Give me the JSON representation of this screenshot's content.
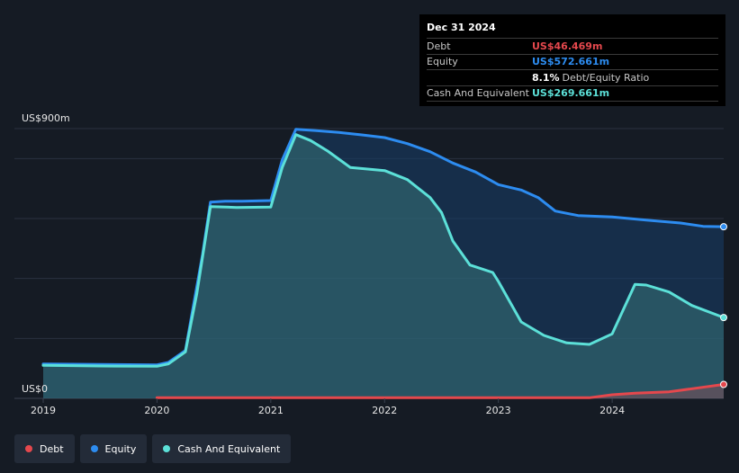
{
  "tooltip": {
    "date": "Dec 31 2024",
    "rows": [
      {
        "label": "Debt",
        "value": "US$46.469m",
        "color": "#e5484d"
      },
      {
        "label": "Equity",
        "value": "US$572.661m",
        "color": "#2d8cf0"
      },
      {
        "label": "",
        "value": "8.1%",
        "extra": "Debt/Equity Ratio",
        "color": "#ffffff"
      },
      {
        "label": "Cash And Equivalent",
        "value": "US$269.661m",
        "color": "#5ce0d8"
      }
    ]
  },
  "legend": [
    {
      "label": "Debt",
      "color": "#e5484d"
    },
    {
      "label": "Equity",
      "color": "#2d8cf0"
    },
    {
      "label": "Cash And Equivalent",
      "color": "#5ce0d8"
    }
  ],
  "chart_data": {
    "type": "area",
    "y_top_label": "US$900m",
    "y_bottom_label": "US$0",
    "ylim": [
      0,
      900
    ],
    "xlim": [
      2019.0,
      2024.98
    ],
    "x_ticks": [
      "2019",
      "2020",
      "2021",
      "2022",
      "2023",
      "2024"
    ],
    "grid": true,
    "series": [
      {
        "name": "Equity",
        "color": "#2d8cf0",
        "points": [
          [
            2019.0,
            115
          ],
          [
            2019.5,
            113
          ],
          [
            2020.0,
            112
          ],
          [
            2020.1,
            120
          ],
          [
            2020.25,
            160
          ],
          [
            2020.4,
            480
          ],
          [
            2020.47,
            655
          ],
          [
            2020.6,
            658
          ],
          [
            2020.75,
            658
          ],
          [
            2021.0,
            660
          ],
          [
            2021.1,
            795
          ],
          [
            2021.22,
            898
          ],
          [
            2021.4,
            893
          ],
          [
            2021.6,
            887
          ],
          [
            2021.8,
            879
          ],
          [
            2022.0,
            870
          ],
          [
            2022.2,
            850
          ],
          [
            2022.4,
            823
          ],
          [
            2022.6,
            785
          ],
          [
            2022.8,
            755
          ],
          [
            2023.0,
            713
          ],
          [
            2023.2,
            695
          ],
          [
            2023.35,
            670
          ],
          [
            2023.5,
            625
          ],
          [
            2023.7,
            610
          ],
          [
            2024.0,
            605
          ],
          [
            2024.3,
            595
          ],
          [
            2024.6,
            585
          ],
          [
            2024.8,
            574
          ],
          [
            2024.98,
            572.661
          ]
        ]
      },
      {
        "name": "Cash And Equivalent",
        "color": "#5ce0d8",
        "points": [
          [
            2019.0,
            110
          ],
          [
            2019.5,
            108
          ],
          [
            2020.0,
            107
          ],
          [
            2020.1,
            115
          ],
          [
            2020.25,
            155
          ],
          [
            2020.35,
            350
          ],
          [
            2020.47,
            640
          ],
          [
            2020.7,
            637
          ],
          [
            2021.0,
            638
          ],
          [
            2021.1,
            770
          ],
          [
            2021.22,
            880
          ],
          [
            2021.35,
            860
          ],
          [
            2021.5,
            825
          ],
          [
            2021.7,
            770
          ],
          [
            2022.0,
            760
          ],
          [
            2022.2,
            730
          ],
          [
            2022.4,
            670
          ],
          [
            2022.5,
            620
          ],
          [
            2022.6,
            525
          ],
          [
            2022.75,
            445
          ],
          [
            2022.95,
            420
          ],
          [
            2023.0,
            390
          ],
          [
            2023.2,
            255
          ],
          [
            2023.4,
            210
          ],
          [
            2023.6,
            185
          ],
          [
            2023.8,
            180
          ],
          [
            2024.0,
            215
          ],
          [
            2024.2,
            380
          ],
          [
            2024.3,
            378
          ],
          [
            2024.5,
            355
          ],
          [
            2024.7,
            310
          ],
          [
            2024.98,
            269.661
          ]
        ]
      },
      {
        "name": "Debt",
        "color": "#e5484d",
        "points": [
          [
            2020.0,
            2
          ],
          [
            2021.0,
            2
          ],
          [
            2022.0,
            2
          ],
          [
            2023.0,
            2
          ],
          [
            2023.8,
            2
          ],
          [
            2024.0,
            12
          ],
          [
            2024.2,
            17
          ],
          [
            2024.5,
            22
          ],
          [
            2024.7,
            32
          ],
          [
            2024.98,
            46.469
          ]
        ]
      }
    ]
  }
}
